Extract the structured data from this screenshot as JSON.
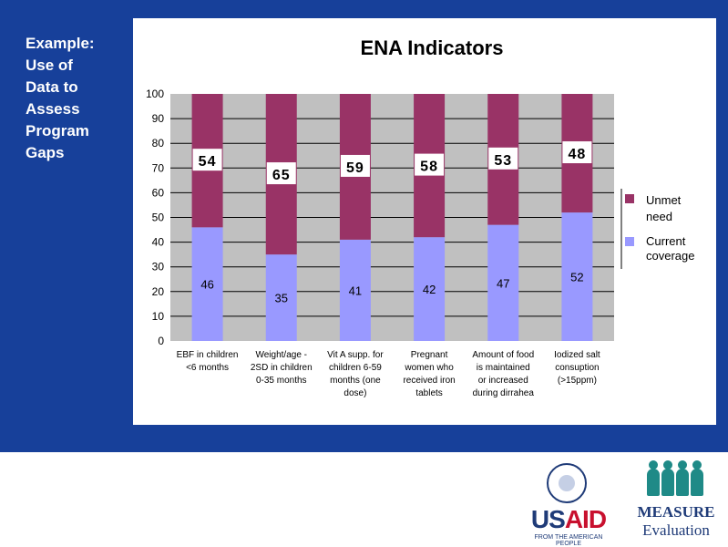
{
  "side_text": {
    "lines": [
      "Example:",
      "Use of",
      "Data to",
      "Assess",
      "Program",
      "Gaps"
    ]
  },
  "colors": {
    "panel": "#17409a",
    "unmet": "#993366",
    "coverage": "#9999ff",
    "plot_bg": "#c0c0c0"
  },
  "chart_data": {
    "type": "bar",
    "stacked": true,
    "title": "ENA Indicators",
    "categories": [
      [
        "EBF in children",
        "<6 months"
      ],
      [
        "Weight/age -",
        "2SD in children",
        "0-35 months"
      ],
      [
        "Vit A supp. for",
        "children 6-59",
        "months (one",
        "dose)"
      ],
      [
        "Pregnant",
        "women who",
        "received iron",
        "tablets"
      ],
      [
        "Amount of food",
        "is maintained",
        "or increased",
        "during dirrahea"
      ],
      [
        "Iodized salt",
        "consuption",
        "(>15ppm)"
      ]
    ],
    "series": [
      {
        "name": "Current coverage",
        "values": [
          46,
          35,
          41,
          42,
          47,
          52
        ]
      },
      {
        "name": "Unmet need",
        "values": [
          54,
          65,
          59,
          58,
          53,
          48
        ]
      }
    ],
    "legend": [
      "Unmet need",
      "Current coverage"
    ],
    "legend_position": "right",
    "yticks": [
      0,
      10,
      20,
      30,
      40,
      50,
      60,
      70,
      80,
      90,
      100
    ],
    "ylim": [
      0,
      100
    ],
    "grid": true
  },
  "logos": {
    "usaid": {
      "word_us": "US",
      "word_aid": "AID",
      "subtitle": "FROM THE AMERICAN PEOPLE"
    },
    "measure": {
      "word": "MEASURE",
      "sub": "Evaluation"
    }
  }
}
